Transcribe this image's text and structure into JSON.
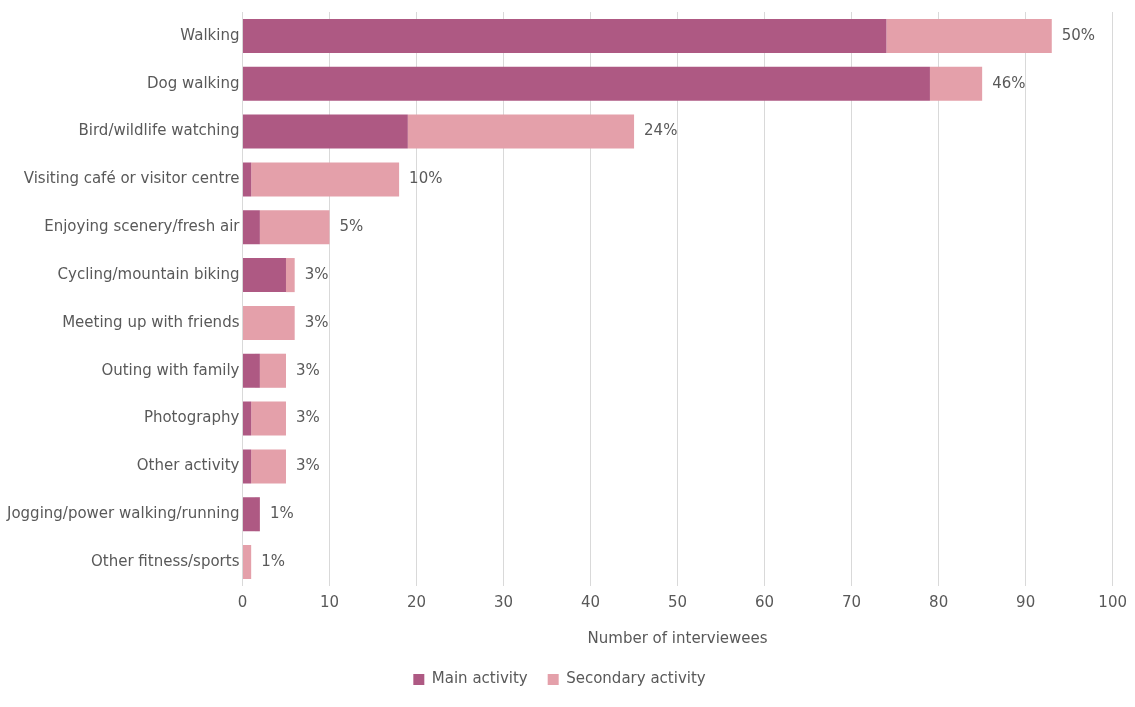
{
  "chart_data": {
    "type": "bar",
    "orientation": "horizontal",
    "stacked": true,
    "categories": [
      "Walking",
      "Dog walking",
      "Bird/wildlife watching",
      "Visiting café or visitor centre",
      "Enjoying scenery/fresh air",
      "Cycling/mountain biking",
      "Meeting up with friends",
      "Outing with family",
      "Photography",
      "Other activity",
      "Jogging/power walking/running",
      "Other fitness/sports"
    ],
    "series": [
      {
        "name": "Main activity",
        "color": "#ae5983",
        "values": [
          74,
          79,
          19,
          1,
          2,
          5,
          0,
          2,
          1,
          1,
          2,
          0
        ]
      },
      {
        "name": "Secondary activity",
        "color": "#e4a0aa",
        "values": [
          19,
          6,
          26,
          17,
          8,
          1,
          6,
          3,
          4,
          4,
          0,
          1
        ]
      }
    ],
    "annotations": [
      {
        "text": "50%",
        "x": 93,
        "y": "Walking"
      },
      {
        "text": "46%",
        "x": 85,
        "y": "Dog walking"
      },
      {
        "text": "24%",
        "x": 45,
        "y": "Bird/wildlife watching"
      },
      {
        "text": "10%",
        "x": 18,
        "y": "Visiting café or visitor centre"
      },
      {
        "text": "5%",
        "x": 10,
        "y": "Enjoying scenery/fresh air"
      },
      {
        "text": "3%",
        "x": 6,
        "y": "Cycling/mountain biking"
      },
      {
        "text": "3%",
        "x": 6,
        "y": "Meeting up with friends"
      },
      {
        "text": "3%",
        "x": 5,
        "y": "Outing with family"
      },
      {
        "text": "3%",
        "x": 5,
        "y": "Photography"
      },
      {
        "text": "3%",
        "x": 5,
        "y": "Other activity"
      },
      {
        "text": "1%",
        "x": 2,
        "y": "Jogging/power walking/running"
      },
      {
        "text": "1%",
        "x": 1,
        "y": "Other fitness/sports"
      }
    ],
    "xlabel": "Number of interviewees",
    "xlim": [
      0,
      100
    ],
    "xticks": [
      0,
      10,
      20,
      30,
      40,
      50,
      60,
      70,
      80,
      90,
      100
    ],
    "grid": "x",
    "legend": "bottom"
  }
}
